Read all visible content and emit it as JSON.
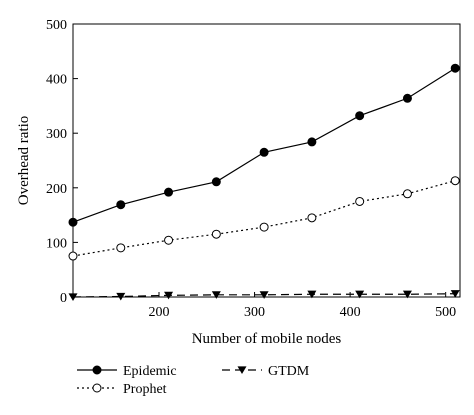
{
  "chart_data": {
    "type": "line",
    "title": "",
    "xlabel": "Number of mobile nodes",
    "ylabel": "Overhead ratio",
    "xlim": [
      110,
      515
    ],
    "ylim": [
      0,
      500
    ],
    "xticks": [
      200,
      300,
      400,
      500
    ],
    "yticks": [
      0,
      100,
      200,
      300,
      400,
      500
    ],
    "grid": false,
    "legend_position": "bottom",
    "x": [
      110,
      160,
      210,
      260,
      310,
      360,
      410,
      460,
      510
    ],
    "series": [
      {
        "name": "Epidemic",
        "values": [
          137,
          169,
          192,
          211,
          265,
          284,
          332,
          364,
          419
        ],
        "marker": "filled-circle",
        "line_style": "solid",
        "color": "#000000"
      },
      {
        "name": "Prophet",
        "values": [
          75,
          90,
          104,
          115,
          128,
          145,
          175,
          189,
          213
        ],
        "marker": "open-circle",
        "line_style": "dotted",
        "color": "#000000"
      },
      {
        "name": "GTDM",
        "values": [
          0,
          1,
          3,
          4,
          4,
          5,
          5,
          5,
          6
        ],
        "marker": "filled-triangle-down",
        "line_style": "dashed",
        "color": "#000000"
      }
    ]
  }
}
